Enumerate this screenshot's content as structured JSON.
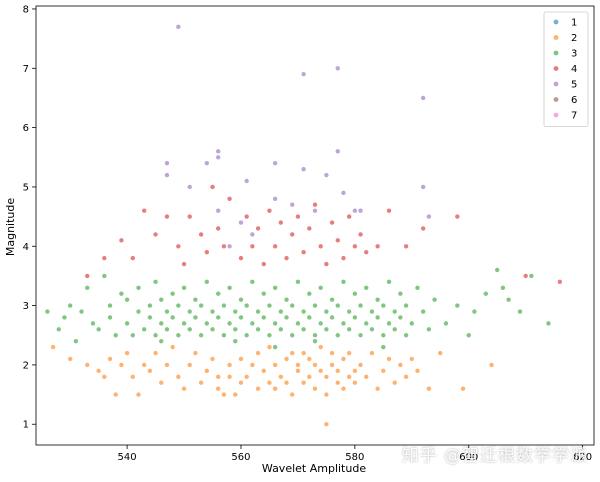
{
  "watermark": "知乎 @智迁根数学学派",
  "chart_data": {
    "type": "scatter",
    "title": "",
    "xlabel": "Wavelet Amplitude",
    "ylabel": "Magnitude",
    "xlim": [
      524,
      622
    ],
    "ylim": [
      0.65,
      8.05
    ],
    "xticks": [
      540,
      560,
      580,
      600,
      620
    ],
    "yticks": [
      1,
      2,
      3,
      4,
      5,
      6,
      7,
      8
    ],
    "legend_position": "top-right",
    "series": [
      {
        "name": "1",
        "color": "#1f77b4",
        "points": []
      },
      {
        "name": "2",
        "color": "#ff7f0e",
        "points": [
          [
            527,
            2.3
          ],
          [
            530,
            2.1
          ],
          [
            533,
            2.0
          ],
          [
            535,
            1.9
          ],
          [
            536,
            1.8
          ],
          [
            537,
            2.1
          ],
          [
            538,
            1.5
          ],
          [
            539,
            2.0
          ],
          [
            540,
            2.2
          ],
          [
            541,
            1.8
          ],
          [
            542,
            1.5
          ],
          [
            543,
            2.0
          ],
          [
            544,
            1.9
          ],
          [
            545,
            2.2
          ],
          [
            546,
            1.7
          ],
          [
            547,
            2.0
          ],
          [
            548,
            2.3
          ],
          [
            549,
            1.8
          ],
          [
            550,
            1.6
          ],
          [
            551,
            2.0
          ],
          [
            552,
            2.2
          ],
          [
            553,
            1.7
          ],
          [
            554,
            1.9
          ],
          [
            555,
            2.1
          ],
          [
            556,
            1.8
          ],
          [
            556,
            1.6
          ],
          [
            557,
            1.5
          ],
          [
            558,
            2.0
          ],
          [
            558,
            1.8
          ],
          [
            559,
            1.5
          ],
          [
            560,
            2.1
          ],
          [
            560,
            1.7
          ],
          [
            561,
            1.8
          ],
          [
            562,
            2.0
          ],
          [
            563,
            1.6
          ],
          [
            563,
            2.2
          ],
          [
            564,
            1.9
          ],
          [
            565,
            1.7
          ],
          [
            565,
            2.3
          ],
          [
            566,
            2.0
          ],
          [
            566,
            1.6
          ],
          [
            567,
            1.8
          ],
          [
            568,
            2.1
          ],
          [
            568,
            1.7
          ],
          [
            569,
            2.2
          ],
          [
            569,
            1.5
          ],
          [
            570,
            1.9
          ],
          [
            570,
            2.0
          ],
          [
            571,
            1.7
          ],
          [
            571,
            2.2
          ],
          [
            572,
            1.8
          ],
          [
            572,
            2.1
          ],
          [
            573,
            1.6
          ],
          [
            573,
            2.0
          ],
          [
            574,
            1.9
          ],
          [
            574,
            2.3
          ],
          [
            575,
            1.8
          ],
          [
            575,
            1.5
          ],
          [
            576,
            2.0
          ],
          [
            576,
            2.2
          ],
          [
            577,
            1.7
          ],
          [
            577,
            1.9
          ],
          [
            578,
            2.1
          ],
          [
            578,
            1.6
          ],
          [
            579,
            1.8
          ],
          [
            579,
            2.2
          ],
          [
            580,
            1.9
          ],
          [
            580,
            1.7
          ],
          [
            581,
            2.0
          ],
          [
            582,
            1.8
          ],
          [
            583,
            2.2
          ],
          [
            584,
            1.6
          ],
          [
            585,
            1.9
          ],
          [
            586,
            2.1
          ],
          [
            587,
            1.7
          ],
          [
            588,
            2.0
          ],
          [
            589,
            1.8
          ],
          [
            590,
            2.1
          ],
          [
            591,
            1.9
          ],
          [
            593,
            1.6
          ],
          [
            595,
            2.2
          ],
          [
            599,
            1.6
          ],
          [
            604,
            2.0
          ],
          [
            575,
            1.0
          ]
        ]
      },
      {
        "name": "3",
        "color": "#2ca02c",
        "points": [
          [
            526,
            2.9
          ],
          [
            528,
            2.6
          ],
          [
            529,
            2.8
          ],
          [
            530,
            3.0
          ],
          [
            531,
            2.4
          ],
          [
            532,
            2.9
          ],
          [
            533,
            3.3
          ],
          [
            534,
            2.7
          ],
          [
            535,
            2.6
          ],
          [
            536,
            3.5
          ],
          [
            537,
            3.0
          ],
          [
            537,
            2.8
          ],
          [
            538,
            2.5
          ],
          [
            539,
            3.2
          ],
          [
            540,
            2.7
          ],
          [
            540,
            3.1
          ],
          [
            541,
            2.5
          ],
          [
            542,
            2.9
          ],
          [
            542,
            3.3
          ],
          [
            543,
            2.6
          ],
          [
            544,
            3.0
          ],
          [
            544,
            2.8
          ],
          [
            545,
            3.4
          ],
          [
            545,
            2.5
          ],
          [
            546,
            2.7
          ],
          [
            546,
            3.1
          ],
          [
            547,
            2.9
          ],
          [
            547,
            2.6
          ],
          [
            548,
            3.2
          ],
          [
            548,
            2.8
          ],
          [
            549,
            2.5
          ],
          [
            549,
            3.0
          ],
          [
            550,
            2.7
          ],
          [
            550,
            3.3
          ],
          [
            551,
            2.9
          ],
          [
            551,
            2.6
          ],
          [
            552,
            3.1
          ],
          [
            552,
            2.8
          ],
          [
            553,
            2.5
          ],
          [
            553,
            3.0
          ],
          [
            554,
            2.7
          ],
          [
            554,
            3.4
          ],
          [
            555,
            2.9
          ],
          [
            555,
            2.6
          ],
          [
            556,
            3.2
          ],
          [
            556,
            2.8
          ],
          [
            557,
            2.5
          ],
          [
            557,
            3.0
          ],
          [
            558,
            2.7
          ],
          [
            558,
            3.3
          ],
          [
            559,
            2.9
          ],
          [
            559,
            2.6
          ],
          [
            560,
            3.1
          ],
          [
            560,
            2.8
          ],
          [
            561,
            2.5
          ],
          [
            561,
            3.0
          ],
          [
            562,
            2.7
          ],
          [
            562,
            3.4
          ],
          [
            563,
            2.9
          ],
          [
            563,
            2.6
          ],
          [
            564,
            3.2
          ],
          [
            564,
            2.8
          ],
          [
            565,
            2.5
          ],
          [
            565,
            3.0
          ],
          [
            566,
            2.7
          ],
          [
            566,
            3.3
          ],
          [
            567,
            2.9
          ],
          [
            567,
            2.6
          ],
          [
            568,
            3.1
          ],
          [
            568,
            2.8
          ],
          [
            569,
            2.5
          ],
          [
            569,
            3.0
          ],
          [
            570,
            2.7
          ],
          [
            570,
            3.4
          ],
          [
            571,
            2.9
          ],
          [
            571,
            2.6
          ],
          [
            572,
            3.2
          ],
          [
            572,
            2.8
          ],
          [
            573,
            2.5
          ],
          [
            573,
            3.0
          ],
          [
            574,
            2.7
          ],
          [
            574,
            3.3
          ],
          [
            575,
            2.9
          ],
          [
            575,
            2.6
          ],
          [
            576,
            3.1
          ],
          [
            576,
            2.8
          ],
          [
            577,
            2.5
          ],
          [
            577,
            3.0
          ],
          [
            578,
            2.7
          ],
          [
            578,
            3.4
          ],
          [
            579,
            2.9
          ],
          [
            579,
            2.6
          ],
          [
            580,
            3.2
          ],
          [
            580,
            2.8
          ],
          [
            581,
            2.5
          ],
          [
            581,
            3.0
          ],
          [
            582,
            2.7
          ],
          [
            582,
            3.3
          ],
          [
            583,
            2.9
          ],
          [
            583,
            2.6
          ],
          [
            584,
            3.1
          ],
          [
            584,
            2.8
          ],
          [
            585,
            2.5
          ],
          [
            585,
            3.0
          ],
          [
            586,
            2.7
          ],
          [
            586,
            3.4
          ],
          [
            587,
            2.9
          ],
          [
            587,
            2.6
          ],
          [
            588,
            3.2
          ],
          [
            588,
            2.8
          ],
          [
            589,
            2.5
          ],
          [
            589,
            3.0
          ],
          [
            590,
            2.7
          ],
          [
            591,
            3.3
          ],
          [
            592,
            2.9
          ],
          [
            593,
            2.6
          ],
          [
            594,
            3.1
          ],
          [
            596,
            2.7
          ],
          [
            598,
            3.0
          ],
          [
            600,
            2.5
          ],
          [
            601,
            2.9
          ],
          [
            603,
            3.2
          ],
          [
            605,
            3.6
          ],
          [
            606,
            3.3
          ],
          [
            607,
            3.1
          ],
          [
            609,
            2.9
          ],
          [
            611,
            3.5
          ],
          [
            614,
            2.7
          ],
          [
            573,
            2.4
          ],
          [
            559,
            2.4
          ],
          [
            546,
            2.4
          ],
          [
            585,
            2.3
          ],
          [
            566,
            2.3
          ]
        ]
      },
      {
        "name": "4",
        "color": "#d62728",
        "points": [
          [
            533,
            3.5
          ],
          [
            536,
            3.8
          ],
          [
            539,
            4.1
          ],
          [
            541,
            3.8
          ],
          [
            543,
            4.6
          ],
          [
            545,
            4.2
          ],
          [
            547,
            4.5
          ],
          [
            549,
            4.0
          ],
          [
            550,
            3.7
          ],
          [
            551,
            4.5
          ],
          [
            553,
            4.2
          ],
          [
            554,
            3.9
          ],
          [
            555,
            5.0
          ],
          [
            556,
            4.3
          ],
          [
            557,
            4.0
          ],
          [
            558,
            4.8
          ],
          [
            560,
            3.8
          ],
          [
            561,
            4.5
          ],
          [
            562,
            4.0
          ],
          [
            563,
            4.3
          ],
          [
            564,
            3.7
          ],
          [
            565,
            4.6
          ],
          [
            566,
            4.0
          ],
          [
            567,
            4.4
          ],
          [
            568,
            3.8
          ],
          [
            569,
            4.2
          ],
          [
            570,
            4.5
          ],
          [
            571,
            3.9
          ],
          [
            572,
            4.3
          ],
          [
            573,
            4.7
          ],
          [
            574,
            4.0
          ],
          [
            575,
            3.7
          ],
          [
            576,
            4.4
          ],
          [
            577,
            4.1
          ],
          [
            578,
            3.8
          ],
          [
            579,
            4.5
          ],
          [
            580,
            4.0
          ],
          [
            581,
            4.2
          ],
          [
            582,
            3.9
          ],
          [
            584,
            4.0
          ],
          [
            586,
            4.6
          ],
          [
            589,
            4.0
          ],
          [
            592,
            4.3
          ],
          [
            598,
            4.5
          ],
          [
            610,
            3.5
          ],
          [
            616,
            3.4
          ]
        ]
      },
      {
        "name": "5",
        "color": "#9467bd",
        "points": [
          [
            549,
            7.7
          ],
          [
            571,
            6.9
          ],
          [
            577,
            7.0
          ],
          [
            592,
            6.5
          ],
          [
            547,
            5.4
          ],
          [
            547,
            5.2
          ],
          [
            551,
            5.0
          ],
          [
            554,
            5.4
          ],
          [
            556,
            5.6
          ],
          [
            556,
            5.5
          ],
          [
            561,
            5.1
          ],
          [
            566,
            5.4
          ],
          [
            571,
            5.3
          ],
          [
            575,
            5.2
          ],
          [
            577,
            5.6
          ],
          [
            578,
            4.9
          ],
          [
            592,
            5.0
          ],
          [
            593,
            4.5
          ],
          [
            556,
            4.6
          ],
          [
            562,
            4.2
          ],
          [
            566,
            4.8
          ],
          [
            569,
            4.7
          ],
          [
            573,
            4.6
          ],
          [
            580,
            4.6
          ],
          [
            581,
            4.6
          ],
          [
            558,
            4.0
          ],
          [
            560,
            4.4
          ]
        ]
      },
      {
        "name": "6",
        "color": "#8c564b",
        "points": []
      },
      {
        "name": "7",
        "color": "#e377c2",
        "points": []
      }
    ]
  }
}
